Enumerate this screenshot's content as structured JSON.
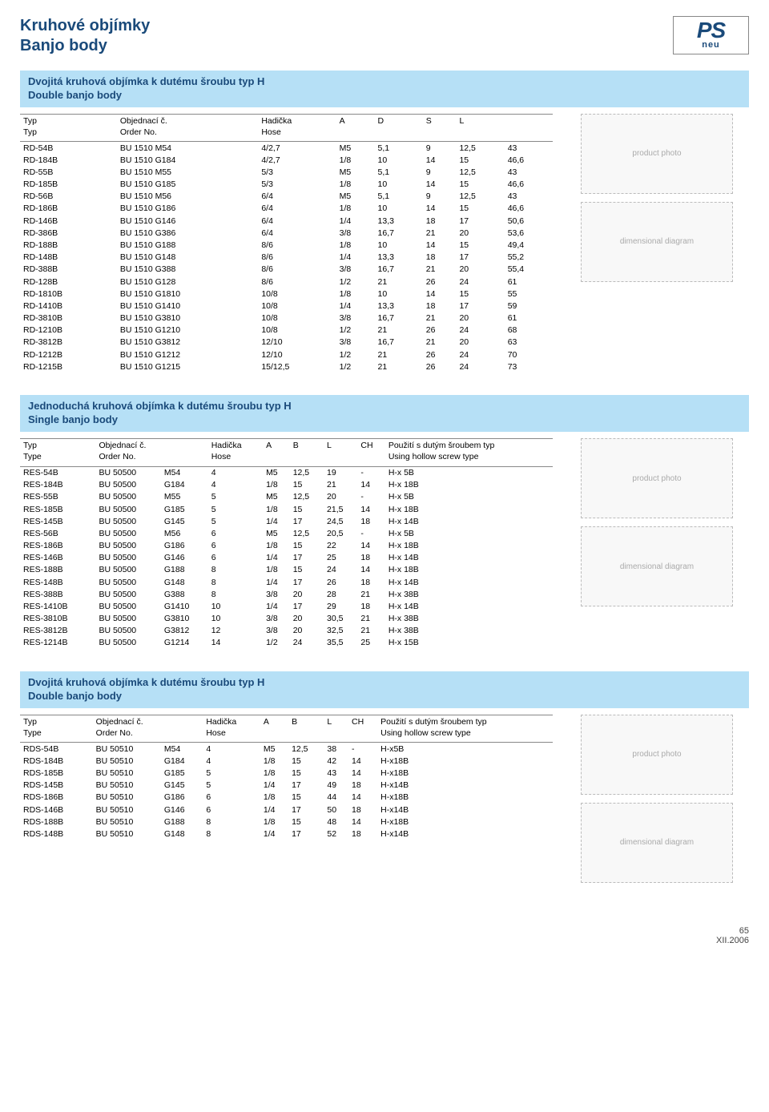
{
  "page": {
    "title_cs": "Kruhové objímky",
    "title_en": "Banjo body",
    "footer_page": "65",
    "footer_date": "XII.2006",
    "logo_top": "PS",
    "logo_bottom": "neu"
  },
  "colors": {
    "header_bg": "#b6e0f6",
    "header_text": "#1a4a7a",
    "title_text": "#1a4a7a",
    "rule": "#888888"
  },
  "section1": {
    "title_cs": "Dvojitá kruhová objímka k dutému šroubu typ H",
    "title_en": "Double banjo body",
    "head": {
      "c1a": "Typ",
      "c1b": "Typ",
      "c2a": "Objednací č.",
      "c2b": "Order No.",
      "c3a": "Hadička",
      "c3b": "Hose",
      "c4": "A",
      "c5": "D",
      "c6": "S",
      "c7": "L"
    },
    "rows": [
      [
        "RD-54B",
        "BU 1510 M54",
        "4/2,7",
        "M5",
        "5,1",
        "9",
        "12,5",
        "43"
      ],
      [
        "RD-184B",
        "BU 1510 G184",
        "4/2,7",
        "1/8",
        "10",
        "14",
        "15",
        "46,6"
      ],
      [
        "RD-55B",
        "BU 1510 M55",
        "5/3",
        "M5",
        "5,1",
        "9",
        "12,5",
        "43"
      ],
      [
        "RD-185B",
        "BU 1510 G185",
        "5/3",
        "1/8",
        "10",
        "14",
        "15",
        "46,6"
      ],
      [
        "RD-56B",
        "BU 1510 M56",
        "6/4",
        "M5",
        "5,1",
        "9",
        "12,5",
        "43"
      ],
      [
        "RD-186B",
        "BU 1510 G186",
        "6/4",
        "1/8",
        "10",
        "14",
        "15",
        "46,6"
      ],
      [
        "RD-146B",
        "BU 1510 G146",
        "6/4",
        "1/4",
        "13,3",
        "18",
        "17",
        "50,6"
      ],
      [
        "RD-386B",
        "BU 1510 G386",
        "6/4",
        "3/8",
        "16,7",
        "21",
        "20",
        "53,6"
      ],
      [
        "RD-188B",
        "BU 1510 G188",
        "8/6",
        "1/8",
        "10",
        "14",
        "15",
        "49,4"
      ],
      [
        "RD-148B",
        "BU 1510 G148",
        "8/6",
        "1/4",
        "13,3",
        "18",
        "17",
        "55,2"
      ],
      [
        "RD-388B",
        "BU 1510 G388",
        "8/6",
        "3/8",
        "16,7",
        "21",
        "20",
        "55,4"
      ],
      [
        "RD-128B",
        "BU 1510 G128",
        "8/6",
        "1/2",
        "21",
        "26",
        "24",
        "61"
      ],
      [
        "RD-1810B",
        "BU 1510 G1810",
        "10/8",
        "1/8",
        "10",
        "14",
        "15",
        "55"
      ],
      [
        "RD-1410B",
        "BU 1510 G1410",
        "10/8",
        "1/4",
        "13,3",
        "18",
        "17",
        "59"
      ],
      [
        "RD-3810B",
        "BU 1510 G3810",
        "10/8",
        "3/8",
        "16,7",
        "21",
        "20",
        "61"
      ],
      [
        "RD-1210B",
        "BU 1510 G1210",
        "10/8",
        "1/2",
        "21",
        "26",
        "24",
        "68"
      ],
      [
        "RD-3812B",
        "BU 1510 G3812",
        "12/10",
        "3/8",
        "16,7",
        "21",
        "20",
        "63"
      ],
      [
        "RD-1212B",
        "BU 1510 G1212",
        "12/10",
        "1/2",
        "21",
        "26",
        "24",
        "70"
      ],
      [
        "RD-1215B",
        "BU 1510 G1215",
        "15/12,5",
        "1/2",
        "21",
        "26",
        "24",
        "73"
      ]
    ]
  },
  "section2": {
    "title_cs": "Jednoduchá kruhová objímka k dutému šroubu typ H",
    "title_en": "Single banjo body",
    "head": {
      "c1a": "Typ",
      "c1b": "Type",
      "c2a": "Objednací č.",
      "c2b": "Order No.",
      "c3a": "Hadička",
      "c3b": "Hose",
      "c4": "A",
      "c5": "B",
      "c6": "L",
      "c7": "CH",
      "c8a": "Použití s dutým šroubem typ",
      "c8b": "Using hollow screw type"
    },
    "rows": [
      [
        "RES-54B",
        "BU 50500",
        "M54",
        "4",
        "M5",
        "12,5",
        "19",
        "-",
        "H-x 5B"
      ],
      [
        "RES-184B",
        "BU 50500",
        "G184",
        "4",
        "1/8",
        "15",
        "21",
        "14",
        "H-x 18B"
      ],
      [
        "RES-55B",
        "BU 50500",
        "M55",
        "5",
        "M5",
        "12,5",
        "20",
        "-",
        "H-x 5B"
      ],
      [
        "RES-185B",
        "BU 50500",
        "G185",
        "5",
        "1/8",
        "15",
        "21,5",
        "14",
        "H-x 18B"
      ],
      [
        "RES-145B",
        "BU 50500",
        "G145",
        "5",
        "1/4",
        "17",
        "24,5",
        "18",
        "H-x 14B"
      ],
      [
        "RES-56B",
        "BU 50500",
        "M56",
        "6",
        "M5",
        "12,5",
        "20,5",
        "-",
        "H-x 5B"
      ],
      [
        "RES-186B",
        "BU 50500",
        "G186",
        "6",
        "1/8",
        "15",
        "22",
        "14",
        "H-x 18B"
      ],
      [
        "RES-146B",
        "BU 50500",
        "G146",
        "6",
        "1/4",
        "17",
        "25",
        "18",
        "H-x 14B"
      ],
      [
        "RES-188B",
        "BU 50500",
        "G188",
        "8",
        "1/8",
        "15",
        "24",
        "14",
        "H-x 18B"
      ],
      [
        "RES-148B",
        "BU 50500",
        "G148",
        "8",
        "1/4",
        "17",
        "26",
        "18",
        "H-x 14B"
      ],
      [
        "RES-388B",
        "BU 50500",
        "G388",
        "8",
        "3/8",
        "20",
        "28",
        "21",
        "H-x 38B"
      ],
      [
        "RES-1410B",
        "BU 50500",
        "G1410",
        "10",
        "1/4",
        "17",
        "29",
        "18",
        "H-x 14B"
      ],
      [
        "RES-3810B",
        "BU 50500",
        "G3810",
        "10",
        "3/8",
        "20",
        "30,5",
        "21",
        "H-x 38B"
      ],
      [
        "RES-3812B",
        "BU 50500",
        "G3812",
        "12",
        "3/8",
        "20",
        "32,5",
        "21",
        "H-x 38B"
      ],
      [
        "RES-1214B",
        "BU 50500",
        "G1214",
        "14",
        "1/2",
        "24",
        "35,5",
        "25",
        "H-x 15B"
      ]
    ]
  },
  "section3": {
    "title_cs": "Dvojitá kruhová objímka k dutému šroubu typ H",
    "title_en": "Double banjo body",
    "head": {
      "c1a": "Typ",
      "c1b": "Type",
      "c2a": "Objednací č.",
      "c2b": "Order No.",
      "c3a": "Hadička",
      "c3b": "Hose",
      "c4": "A",
      "c5": "B",
      "c6": "L",
      "c7": "CH",
      "c8a": "Použití s dutým šroubem typ",
      "c8b": "Using hollow screw type"
    },
    "rows": [
      [
        "RDS-54B",
        "BU 50510",
        "M54",
        "4",
        "M5",
        "12,5",
        "38",
        "-",
        "H-x5B"
      ],
      [
        "RDS-184B",
        "BU 50510",
        "G184",
        "4",
        "1/8",
        "15",
        "42",
        "14",
        "H-x18B"
      ],
      [
        "RDS-185B",
        "BU 50510",
        "G185",
        "5",
        "1/8",
        "15",
        "43",
        "14",
        "H-x18B"
      ],
      [
        "RDS-145B",
        "BU 50510",
        "G145",
        "5",
        "1/4",
        "17",
        "49",
        "18",
        "H-x14B"
      ],
      [
        "RDS-186B",
        "BU 50510",
        "G186",
        "6",
        "1/8",
        "15",
        "44",
        "14",
        "H-x18B"
      ],
      [
        "RDS-146B",
        "BU 50510",
        "G146",
        "6",
        "1/4",
        "17",
        "50",
        "18",
        "H-x14B"
      ],
      [
        "RDS-188B",
        "BU 50510",
        "G188",
        "8",
        "1/8",
        "15",
        "48",
        "14",
        "H-x18B"
      ],
      [
        "RDS-148B",
        "BU 50510",
        "G148",
        "8",
        "1/4",
        "17",
        "52",
        "18",
        "H-x14B"
      ]
    ]
  },
  "placeholders": {
    "photo": "product photo",
    "diagram": "dimensional diagram"
  }
}
